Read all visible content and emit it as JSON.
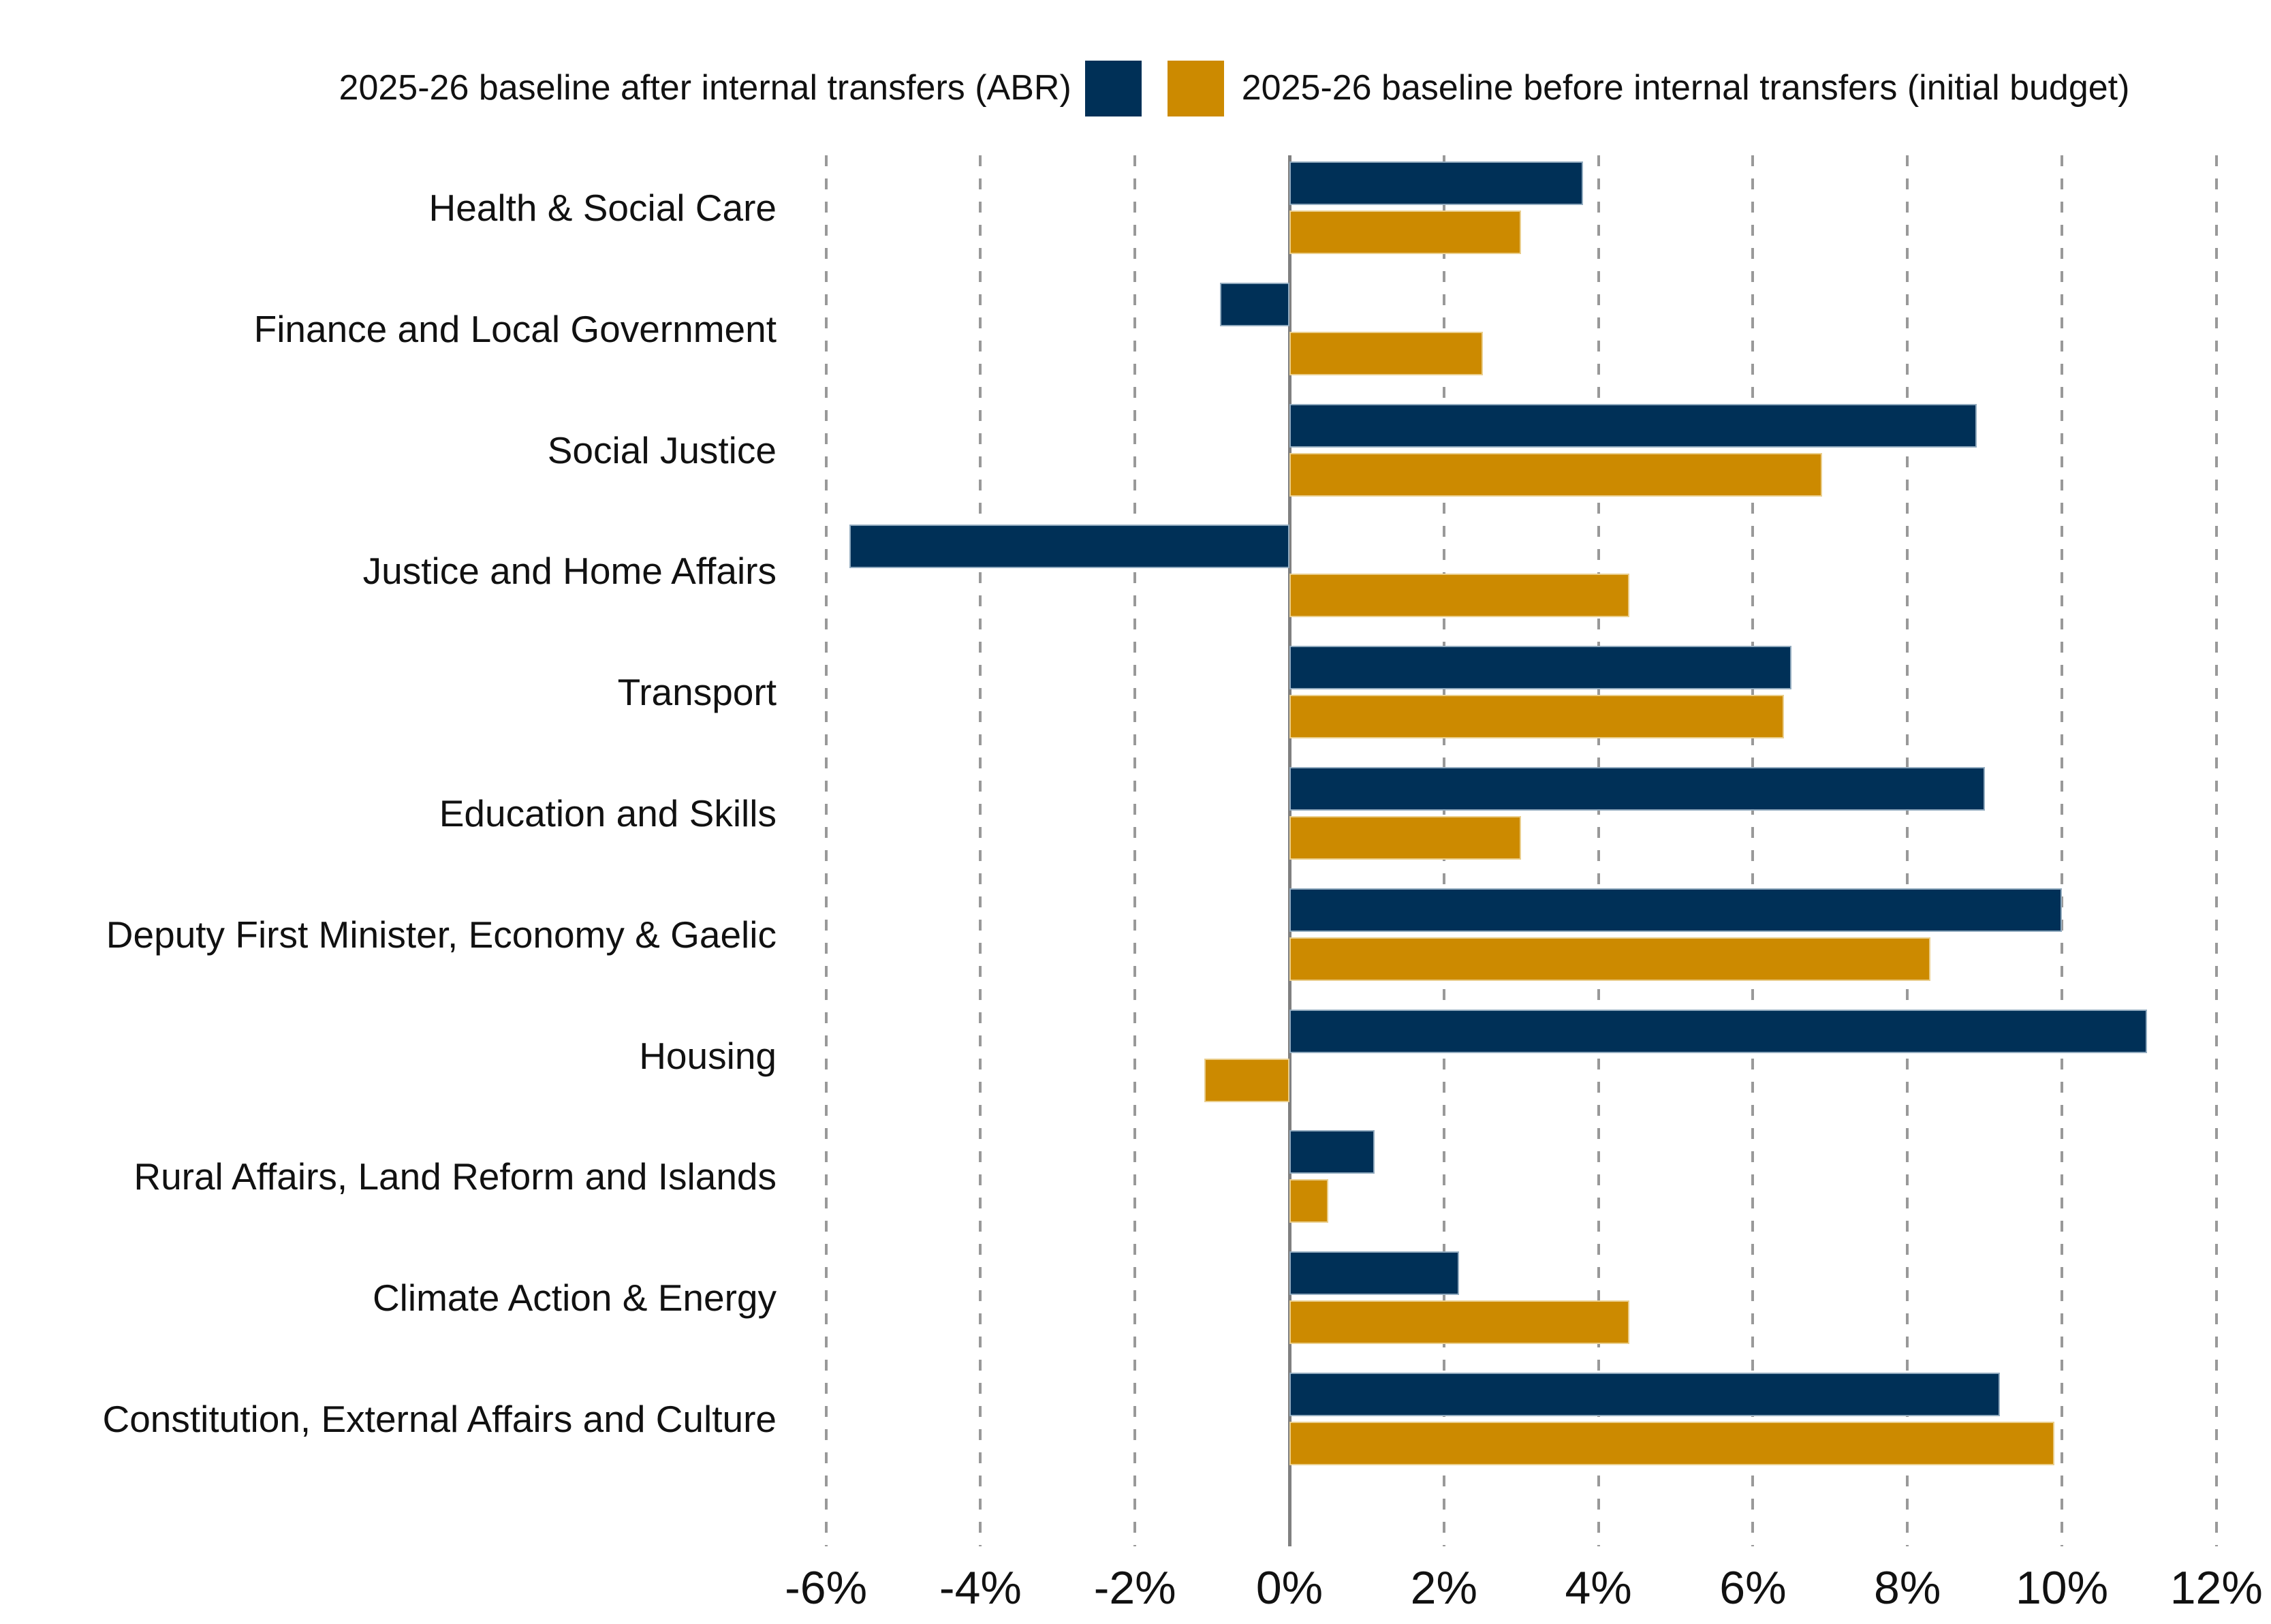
{
  "colors": {
    "background": "#ffffff",
    "text": "#111111",
    "gridline": "#999999",
    "zero_line": "#808080",
    "series_abr": "#003057",
    "series_initial": "#CC8A00"
  },
  "legend": {
    "entries": [
      {
        "label": "2025-26 baseline after internal transfers (ABR)",
        "color": "#003057"
      },
      {
        "label": "2025-26 baseline before internal transfers (initial budget)",
        "color": "#CC8A00"
      }
    ]
  },
  "chart_data": {
    "type": "bar",
    "orientation": "horizontal",
    "title": "",
    "xlabel": "",
    "ylabel": "",
    "grid": "dashed-vertical",
    "legend_position": "top-center",
    "xlim": [
      -6.7,
      12.7
    ],
    "x_ticks": [
      "-6%",
      "-4%",
      "-2%",
      "0%",
      "2%",
      "4%",
      "6%",
      "8%",
      "10%",
      "12%"
    ],
    "x_tick_values": [
      -6,
      -4,
      -2,
      0,
      2,
      4,
      6,
      8,
      10,
      12
    ],
    "categories": [
      "Health & Social Care",
      "Finance and Local Government",
      "Social Justice",
      "Justice and Home Affairs",
      "Transport",
      "Education and Skills",
      "Deputy First Minister, Economy & Gaelic",
      "Housing",
      "Rural Affairs, Land Reform and Islands",
      "Climate Action & Energy",
      "Constitution, External Affairs and Culture"
    ],
    "series": [
      {
        "name": "2025-26 baseline after internal transfers (ABR)",
        "color": "#003057",
        "values": [
          3.8,
          -0.9,
          8.9,
          -5.7,
          6.5,
          9.0,
          10.0,
          11.1,
          1.1,
          2.2,
          9.2
        ]
      },
      {
        "name": "2025-26 baseline before internal transfers (initial budget)",
        "color": "#CC8A00",
        "values": [
          3.0,
          2.5,
          6.9,
          4.4,
          6.4,
          3.0,
          8.3,
          -1.1,
          0.5,
          4.4,
          9.9
        ]
      }
    ],
    "unit": "percent"
  }
}
